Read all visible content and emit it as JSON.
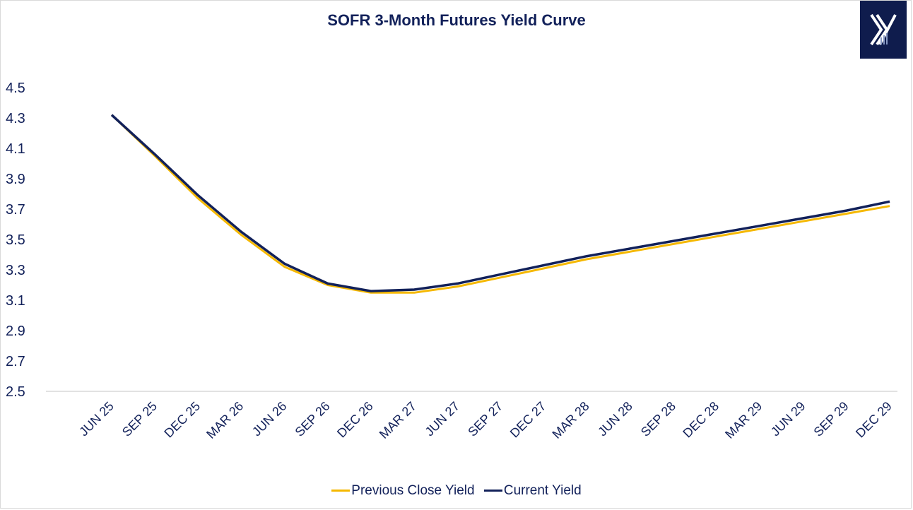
{
  "chart_data": {
    "type": "line",
    "title": "SOFR 3-Month Futures Yield Curve",
    "xlabel": "",
    "ylabel": "",
    "ylim": [
      2.5,
      4.5
    ],
    "yticks": [
      "4.5",
      "4.3",
      "4.1",
      "3.9",
      "3.7",
      "3.5",
      "3.3",
      "3.1",
      "2.9",
      "2.7",
      "2.5"
    ],
    "grid": false,
    "legend_position": "bottom",
    "categories": [
      "JUN 25",
      "SEP 25",
      "DEC 25",
      "MAR 26",
      "JUN 26",
      "SEP 26",
      "DEC 26",
      "MAR 27",
      "JUN 27",
      "SEP 27",
      "DEC 27",
      "MAR 28",
      "JUN 28",
      "SEP 28",
      "DEC 28",
      "MAR 29",
      "JUN 29",
      "SEP 29",
      "DEC 29"
    ],
    "series": [
      {
        "name": "Previous Close Yield",
        "color": "#f5b800",
        "values": [
          4.32,
          4.05,
          3.77,
          3.53,
          3.32,
          3.2,
          3.15,
          3.15,
          3.19,
          3.25,
          3.31,
          3.37,
          3.42,
          3.47,
          3.52,
          3.57,
          3.62,
          3.67,
          3.72
        ]
      },
      {
        "name": "Current Yield",
        "color": "#12215a",
        "values": [
          4.32,
          4.06,
          3.79,
          3.55,
          3.34,
          3.21,
          3.16,
          3.17,
          3.21,
          3.27,
          3.33,
          3.39,
          3.44,
          3.49,
          3.54,
          3.59,
          3.64,
          3.69,
          3.75
        ]
      }
    ]
  }
}
